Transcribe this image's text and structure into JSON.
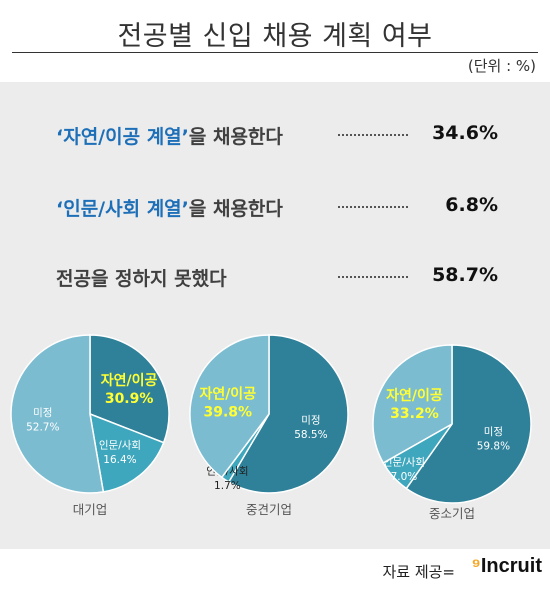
{
  "header": {
    "title": "전공별 신입 채용 계획 여부",
    "unit": "(단위 : %)"
  },
  "stats": [
    {
      "highlight": "‘자연/이공 계열’",
      "rest": "을 채용한다",
      "value": "34.6%"
    },
    {
      "highlight": "‘인문/사회 계열’",
      "rest": "을 채용한다",
      "value": "6.8%"
    },
    {
      "highlight": "",
      "rest": "전공을 정하지 못했다",
      "value": "58.7%"
    }
  ],
  "chart_data": [
    {
      "type": "pie",
      "caption": "대기업",
      "slices": [
        {
          "label": "자연/이공",
          "value": 30.9,
          "color": "#2f8199",
          "text_color": "#ffff33"
        },
        {
          "label": "인문/사회",
          "value": 16.4,
          "color": "#3fa7bd",
          "text_color": "#ffffff"
        },
        {
          "label": "미정",
          "value": 52.7,
          "color": "#7cbcd0",
          "text_color": "#ffffff"
        }
      ]
    },
    {
      "type": "pie",
      "caption": "중견기업",
      "slices": [
        {
          "label": "미정",
          "value": 58.5,
          "color": "#2f8199",
          "text_color": "#ffffff"
        },
        {
          "label": "인문/사회",
          "value": 1.7,
          "color": "#3fa7bd",
          "text_color": "#ffffff"
        },
        {
          "label": "자연/이공",
          "value": 39.8,
          "color": "#7cbcd0",
          "text_color": "#ffff33"
        }
      ]
    },
    {
      "type": "pie",
      "caption": "중소기업",
      "slices": [
        {
          "label": "미정",
          "value": 59.8,
          "color": "#2f8199",
          "text_color": "#ffffff"
        },
        {
          "label": "인문/사회",
          "value": 7.0,
          "color": "#3fa7bd",
          "text_color": "#ffffff"
        },
        {
          "label": "자연/이공",
          "value": 33.2,
          "color": "#7cbcd0",
          "text_color": "#ffff33"
        }
      ]
    }
  ],
  "footer": {
    "source": "자료 제공=",
    "logo_mark": "⁹",
    "logo_text": "Incruit"
  }
}
